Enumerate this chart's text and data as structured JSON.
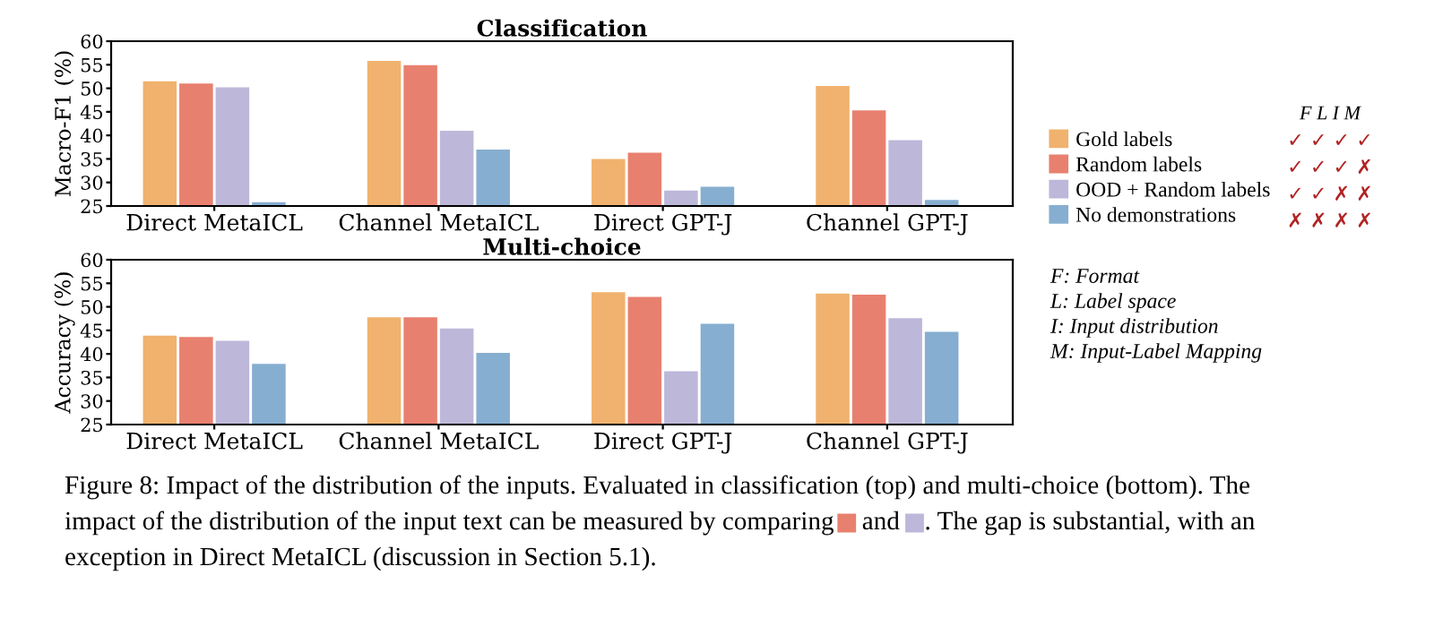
{
  "chart_data": [
    {
      "type": "bar",
      "title": "Classification",
      "ylabel": "Macro-F1 (%)",
      "categories": [
        "Direct MetaICL",
        "Channel MetaICL",
        "Direct GPT-J",
        "Channel GPT-J"
      ],
      "series": [
        {
          "name": "Gold labels",
          "color": "#f0b26e",
          "values": [
            51.5,
            55.8,
            35,
            50.5
          ]
        },
        {
          "name": "Random labels",
          "color": "#e8806f",
          "values": [
            51,
            54.9,
            36.3,
            45.3
          ]
        },
        {
          "name": "OOD + Random labels",
          "color": "#bdb8d9",
          "values": [
            50.2,
            41,
            28.3,
            39
          ]
        },
        {
          "name": "No demonstrations",
          "color": "#86aed0",
          "values": [
            25.8,
            37,
            29.1,
            26.3
          ]
        }
      ],
      "ylim": [
        25,
        60
      ],
      "yticks": [
        25,
        30,
        35,
        40,
        45,
        50,
        55,
        60
      ],
      "grid": false,
      "legend": "right",
      "annotations": [
        "F L I M",
        "✓ ✓ ✓ ✓",
        "✓ ✓ ✓ ✗",
        "✓ ✓ ✗ ✗",
        "✗ ✗ ✗ ✗"
      ]
    },
    {
      "type": "bar",
      "title": "Multi-choice",
      "ylabel": "Accuracy (%)",
      "categories": [
        "Direct MetaICL",
        "Channel MetaICL",
        "Direct GPT-J",
        "Channel GPT-J"
      ],
      "series": [
        {
          "color": "#f0b26e",
          "values": [
            43.9,
            47.8,
            53.1,
            52.8
          ]
        },
        {
          "color": "#e8806f",
          "values": [
            43.6,
            47.8,
            52.1,
            52.6
          ]
        },
        {
          "color": "#bdb8d9",
          "values": [
            42.8,
            45.4,
            36.3,
            47.6
          ]
        },
        {
          "color": "#86aed0",
          "values": [
            37.9,
            40.2,
            46.4,
            44.7
          ]
        }
      ],
      "ylim": [
        25,
        60
      ],
      "yticks": [
        25,
        30,
        35,
        40,
        45,
        50,
        55,
        60
      ],
      "grid": false,
      "annotations": [
        "F: Format",
        "L: Label space",
        "I: Input distribution",
        "M: Input-Label Mapping",
        "Figure 8: Impact of the distribution of the inputs. Evaluated in classification (top) and multi-choice (bottom). The",
        "impact of the distribution of the input text can be measured by comparing",
        "and",
        ". The gap is substantial, with an",
        "exception in Direct MetaICL (discussion in Section 5.1)."
      ]
    }
  ]
}
